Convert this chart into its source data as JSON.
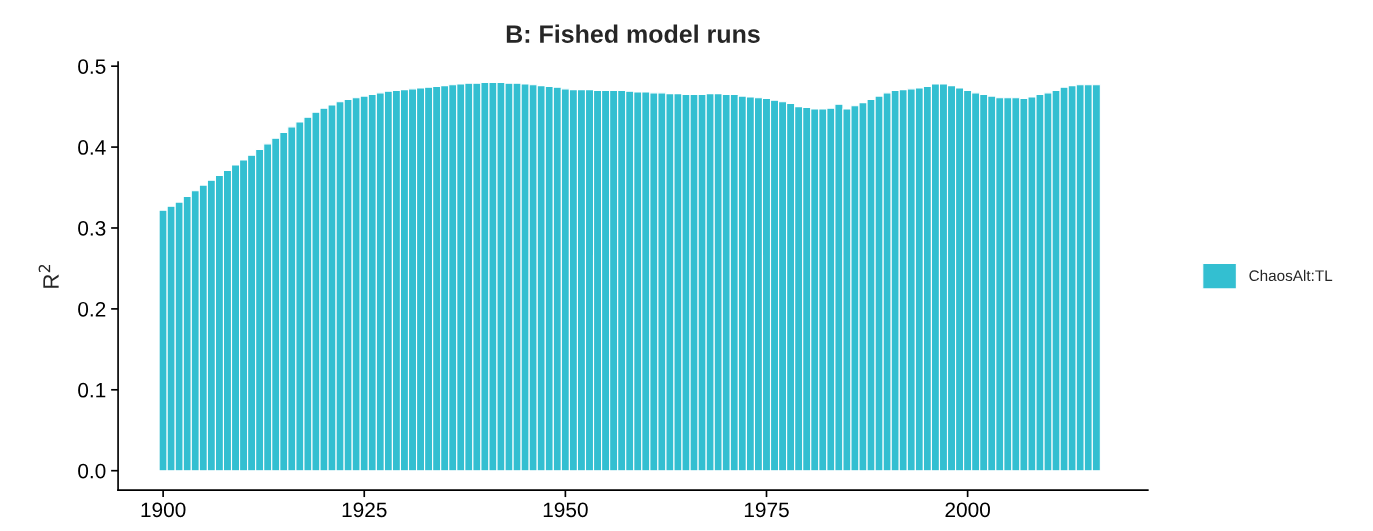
{
  "chart_data": {
    "type": "bar",
    "title": "B: Fished model runs",
    "ylabel": "R$^{2}$",
    "x": [
      1900,
      1901,
      1902,
      1903,
      1904,
      1905,
      1906,
      1907,
      1908,
      1909,
      1910,
      1911,
      1912,
      1913,
      1914,
      1915,
      1916,
      1917,
      1918,
      1919,
      1920,
      1921,
      1922,
      1923,
      1924,
      1925,
      1926,
      1927,
      1928,
      1929,
      1930,
      1931,
      1932,
      1933,
      1934,
      1935,
      1936,
      1937,
      1938,
      1939,
      1940,
      1941,
      1942,
      1943,
      1944,
      1945,
      1946,
      1947,
      1948,
      1949,
      1950,
      1951,
      1952,
      1953,
      1954,
      1955,
      1956,
      1957,
      1958,
      1959,
      1960,
      1961,
      1962,
      1963,
      1964,
      1965,
      1966,
      1967,
      1968,
      1969,
      1970,
      1971,
      1972,
      1973,
      1974,
      1975,
      1976,
      1977,
      1978,
      1979,
      1980,
      1981,
      1982,
      1983,
      1984,
      1985,
      1986,
      1987,
      1988,
      1989,
      1990,
      1991,
      1992,
      1993,
      1994,
      1995,
      1996,
      1997,
      1998,
      1999,
      2000,
      2001,
      2002,
      2003,
      2004,
      2005,
      2006,
      2007,
      2008,
      2009,
      2010,
      2011,
      2012,
      2013,
      2014,
      2015,
      2016
    ],
    "series": [
      {
        "name": "ChaosAlt:TL",
        "color": "#33bfd1",
        "values": [
          0.322,
          0.327,
          0.332,
          0.339,
          0.346,
          0.353,
          0.359,
          0.365,
          0.371,
          0.378,
          0.384,
          0.39,
          0.397,
          0.404,
          0.411,
          0.418,
          0.425,
          0.431,
          0.437,
          0.443,
          0.448,
          0.452,
          0.456,
          0.459,
          0.461,
          0.463,
          0.465,
          0.467,
          0.469,
          0.47,
          0.471,
          0.472,
          0.473,
          0.474,
          0.475,
          0.476,
          0.477,
          0.478,
          0.479,
          0.479,
          0.48,
          0.48,
          0.48,
          0.479,
          0.479,
          0.478,
          0.477,
          0.476,
          0.475,
          0.474,
          0.472,
          0.471,
          0.471,
          0.471,
          0.47,
          0.47,
          0.47,
          0.47,
          0.469,
          0.468,
          0.468,
          0.467,
          0.467,
          0.466,
          0.466,
          0.465,
          0.465,
          0.465,
          0.466,
          0.466,
          0.465,
          0.465,
          0.463,
          0.462,
          0.461,
          0.46,
          0.458,
          0.456,
          0.454,
          0.45,
          0.449,
          0.447,
          0.447,
          0.448,
          0.453,
          0.447,
          0.451,
          0.455,
          0.459,
          0.463,
          0.467,
          0.47,
          0.471,
          0.472,
          0.473,
          0.475,
          0.478,
          0.478,
          0.476,
          0.473,
          0.47,
          0.467,
          0.465,
          0.463,
          0.461,
          0.461,
          0.461,
          0.46,
          0.462,
          0.465,
          0.467,
          0.47,
          0.474,
          0.476,
          0.477,
          0.477,
          0.477
        ]
      }
    ],
    "xlim": [
      1894.4,
      2022.4
    ],
    "xticks": [
      1900,
      1925,
      1950,
      1975,
      2000
    ],
    "ylim": [
      -0.024,
      0.505
    ],
    "yticks": [
      {
        "value": 0,
        "label": "0.0"
      },
      0.1,
      0.2,
      0.3,
      0.4,
      0.5
    ],
    "grid": false,
    "legend": "right"
  }
}
